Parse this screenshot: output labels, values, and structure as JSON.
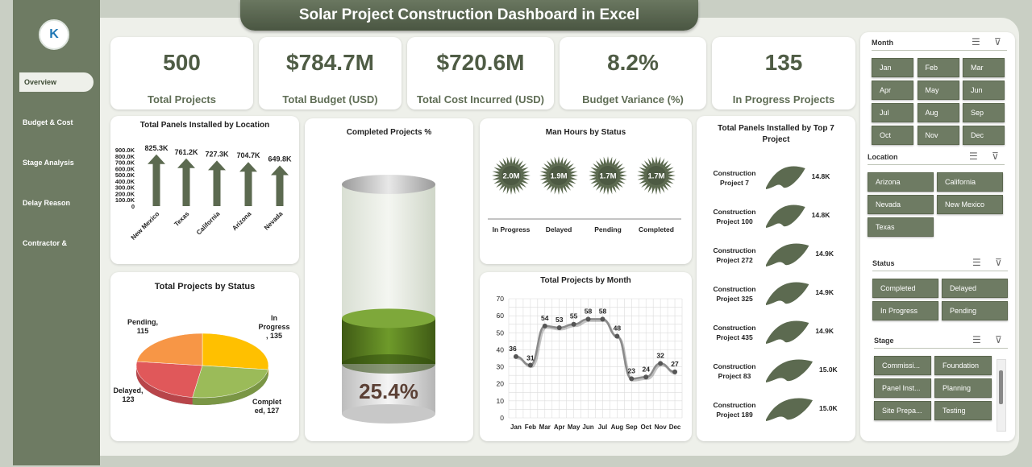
{
  "app": {
    "title": "Solar Project Construction Dashboard in Excel",
    "logo_text": "K"
  },
  "nav": {
    "items": [
      {
        "label": "Overview",
        "active": true
      },
      {
        "label": "Budget & Cost"
      },
      {
        "label": "Stage Analysis"
      },
      {
        "label": "Delay Reason"
      },
      {
        "label": "Contractor &"
      }
    ]
  },
  "kpis": [
    {
      "value": "500",
      "label": "Total Projects"
    },
    {
      "value": "$784.7M",
      "label": "Total Budget (USD)"
    },
    {
      "value": "$720.6M",
      "label": "Total Cost Incurred (USD)"
    },
    {
      "value": "8.2%",
      "label": "Budget Variance (%)"
    },
    {
      "value": "135",
      "label": "In Progress Projects"
    }
  ],
  "colors": {
    "accent": "#6e7b63",
    "dark": "#4a5642"
  },
  "chart_data": [
    {
      "id": "panels_by_location",
      "type": "bar",
      "title": "Total Panels Installed by Location",
      "categories": [
        "New Mexico",
        "Texas",
        "California",
        "Arizona",
        "Nevada"
      ],
      "values": [
        825300,
        761200,
        727300,
        704700,
        649800
      ],
      "data_labels": [
        "825.3K",
        "761.2K",
        "727.3K",
        "704.7K",
        "649.8K"
      ],
      "yticks": [
        "900.0K",
        "800.0K",
        "700.0K",
        "600.0K",
        "500.0K",
        "400.0K",
        "300.0K",
        "200.0K",
        "100.0K",
        "0"
      ],
      "ylim": [
        0,
        900000
      ]
    },
    {
      "id": "completed_pct",
      "type": "bar",
      "title": "Completed Projects %",
      "values": [
        25.4
      ],
      "data_labels": [
        "25.4%"
      ],
      "ylim": [
        0,
        100
      ]
    },
    {
      "id": "man_hours_by_status",
      "type": "bar",
      "title": "Man Hours by Status",
      "categories": [
        "In Progress",
        "Delayed",
        "Pending",
        "Completed"
      ],
      "data_labels": [
        "2.0M",
        "1.9M",
        "1.7M",
        "1.7M"
      ]
    },
    {
      "id": "panels_top7",
      "type": "bar",
      "title": "Total Panels Installed by Top 7 Project",
      "categories": [
        "Construction Project 7",
        "Construction Project 100",
        "Construction Project 272",
        "Construction Project 325",
        "Construction Project 435",
        "Construction Project 83",
        "Construction Project 189"
      ],
      "values": [
        14800,
        14800,
        14900,
        14900,
        14900,
        15000,
        15000
      ],
      "data_labels": [
        "14.8K",
        "14.8K",
        "14.9K",
        "14.9K",
        "14.9K",
        "15.0K",
        "15.0K"
      ]
    },
    {
      "id": "projects_by_status",
      "type": "pie",
      "title": "Total Projects by Status",
      "categories": [
        "In Progress",
        "Completed",
        "Delayed",
        "Pending"
      ],
      "values": [
        135,
        127,
        123,
        115
      ],
      "slice_labels": [
        "In Progress , 135",
        "Completed, 127",
        "Delayed, 123",
        "Pending, 115"
      ],
      "colors": [
        "#ffc000",
        "#9bbb59",
        "#e0585a",
        "#f79646"
      ]
    },
    {
      "id": "projects_by_month",
      "type": "line",
      "title": "Total Projects by Month",
      "categories": [
        "Jan",
        "Feb",
        "Mar",
        "Apr",
        "May",
        "Jun",
        "Jul",
        "Aug",
        "Sep",
        "Oct",
        "Nov",
        "Dec"
      ],
      "values": [
        36,
        31,
        54,
        53,
        55,
        58,
        58,
        48,
        23,
        24,
        32,
        27
      ],
      "yticks": [
        "70",
        "60",
        "50",
        "40",
        "30",
        "20",
        "10",
        "0"
      ],
      "ylim": [
        0,
        70
      ],
      "grid": true
    }
  ],
  "slicers": [
    {
      "title": "Month",
      "items": [
        "Jan",
        "Feb",
        "Mar",
        "Apr",
        "May",
        "Jun",
        "Jul",
        "Aug",
        "Sep",
        "Oct",
        "Nov",
        "Dec"
      ]
    },
    {
      "title": "Location",
      "items": [
        "Arizona",
        "California",
        "Nevada",
        "New Mexico",
        "Texas"
      ]
    },
    {
      "title": "Status",
      "items": [
        "Completed",
        "Delayed",
        "In Progress",
        "Pending"
      ]
    },
    {
      "title": "Stage",
      "items": [
        "Commissi...",
        "Foundation",
        "Panel Inst...",
        "Planning",
        "Site Prepa...",
        "Testing"
      ]
    }
  ]
}
